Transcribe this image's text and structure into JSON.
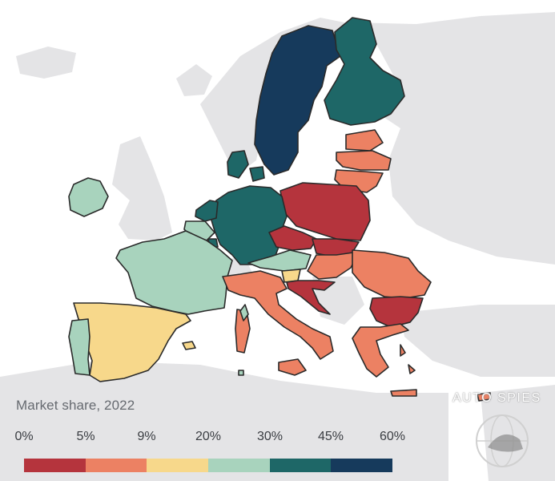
{
  "legend": {
    "title": "Market share, 2022",
    "ticks": [
      "0%",
      "5%",
      "9%",
      "20%",
      "30%",
      "45%",
      "60%"
    ],
    "bins": [
      {
        "range": "0%–5%",
        "color": "#b5343d"
      },
      {
        "range": "5%–9%",
        "color": "#ec8163"
      },
      {
        "range": "9%–20%",
        "color": "#f7d88b"
      },
      {
        "range": "20%–30%",
        "color": "#a8d3bd"
      },
      {
        "range": "30%–45%",
        "color": "#1e6767"
      },
      {
        "range": "45%–60%",
        "color": "#163a5c"
      }
    ]
  },
  "colors": {
    "background_land": "#e4e4e6",
    "sea": "#ffffff",
    "border": "#2a2a2a"
  },
  "countries": [
    {
      "name": "Sweden",
      "bin": 5
    },
    {
      "name": "Finland",
      "bin": 4
    },
    {
      "name": "Denmark",
      "bin": 4
    },
    {
      "name": "Germany",
      "bin": 4
    },
    {
      "name": "Netherlands",
      "bin": 4
    },
    {
      "name": "Luxembourg",
      "bin": 4
    },
    {
      "name": "Ireland",
      "bin": 3
    },
    {
      "name": "France",
      "bin": 3
    },
    {
      "name": "Belgium",
      "bin": 3
    },
    {
      "name": "Austria",
      "bin": 3
    },
    {
      "name": "Portugal",
      "bin": 3
    },
    {
      "name": "Malta",
      "bin": 3
    },
    {
      "name": "Spain",
      "bin": 2
    },
    {
      "name": "Slovenia",
      "bin": 2
    },
    {
      "name": "Estonia",
      "bin": 1
    },
    {
      "name": "Latvia",
      "bin": 1
    },
    {
      "name": "Lithuania",
      "bin": 1
    },
    {
      "name": "Hungary",
      "bin": 1
    },
    {
      "name": "Romania",
      "bin": 1
    },
    {
      "name": "Italy",
      "bin": 1
    },
    {
      "name": "Greece",
      "bin": 1
    },
    {
      "name": "Cyprus",
      "bin": 1
    },
    {
      "name": "Poland",
      "bin": 0
    },
    {
      "name": "Czechia",
      "bin": 0
    },
    {
      "name": "Slovakia",
      "bin": 0
    },
    {
      "name": "Croatia",
      "bin": 0
    },
    {
      "name": "Bulgaria",
      "bin": 0
    }
  ],
  "watermark": {
    "text": "AUTO SPIES",
    "icon": "globe-helmet-logo"
  }
}
